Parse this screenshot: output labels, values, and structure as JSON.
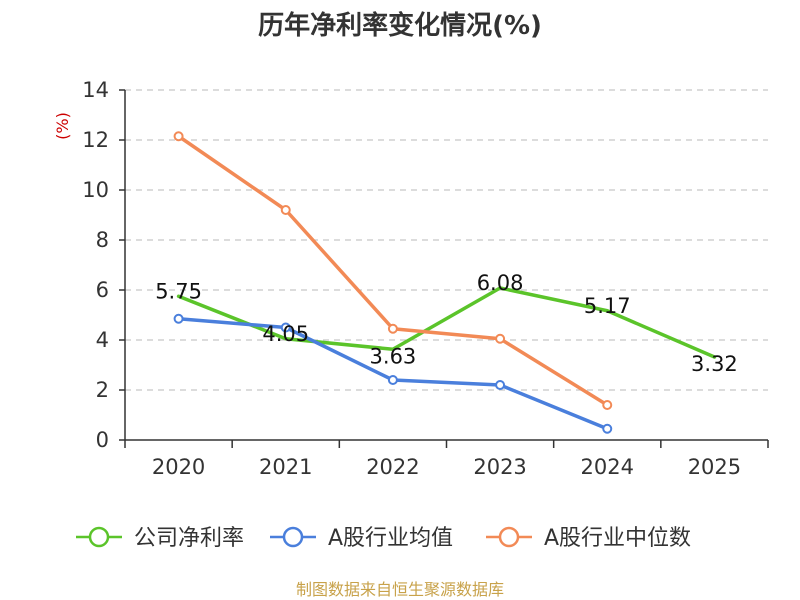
{
  "chart_data": {
    "type": "line",
    "title": "历年净利率变化情况(%)",
    "ylabel": "(%)",
    "xlabel": "",
    "categories": [
      "2020",
      "2021",
      "2022",
      "2023",
      "2024",
      "2025"
    ],
    "ylim": [
      0,
      14
    ],
    "yticks": [
      0,
      2,
      4,
      6,
      8,
      10,
      12,
      14
    ],
    "grid": true,
    "legend_position": "bottom",
    "series": [
      {
        "name": "公司净利率",
        "color": "#5bc42a",
        "values": [
          5.75,
          4.05,
          3.63,
          6.08,
          5.17,
          3.32
        ],
        "labels": [
          "5.75",
          "4.05",
          "3.63",
          "6.08",
          "5.17",
          "3.32"
        ],
        "markers": false
      },
      {
        "name": "A股行业均值",
        "color": "#4a7fdc",
        "values": [
          4.85,
          4.5,
          2.4,
          2.2,
          0.45,
          null
        ],
        "markers": true
      },
      {
        "name": "A股行业中位数",
        "color": "#f28a56",
        "values": [
          12.15,
          9.2,
          4.45,
          4.05,
          1.4,
          null
        ],
        "markers": true
      }
    ],
    "source": "制图数据来自恒生聚源数据库"
  }
}
